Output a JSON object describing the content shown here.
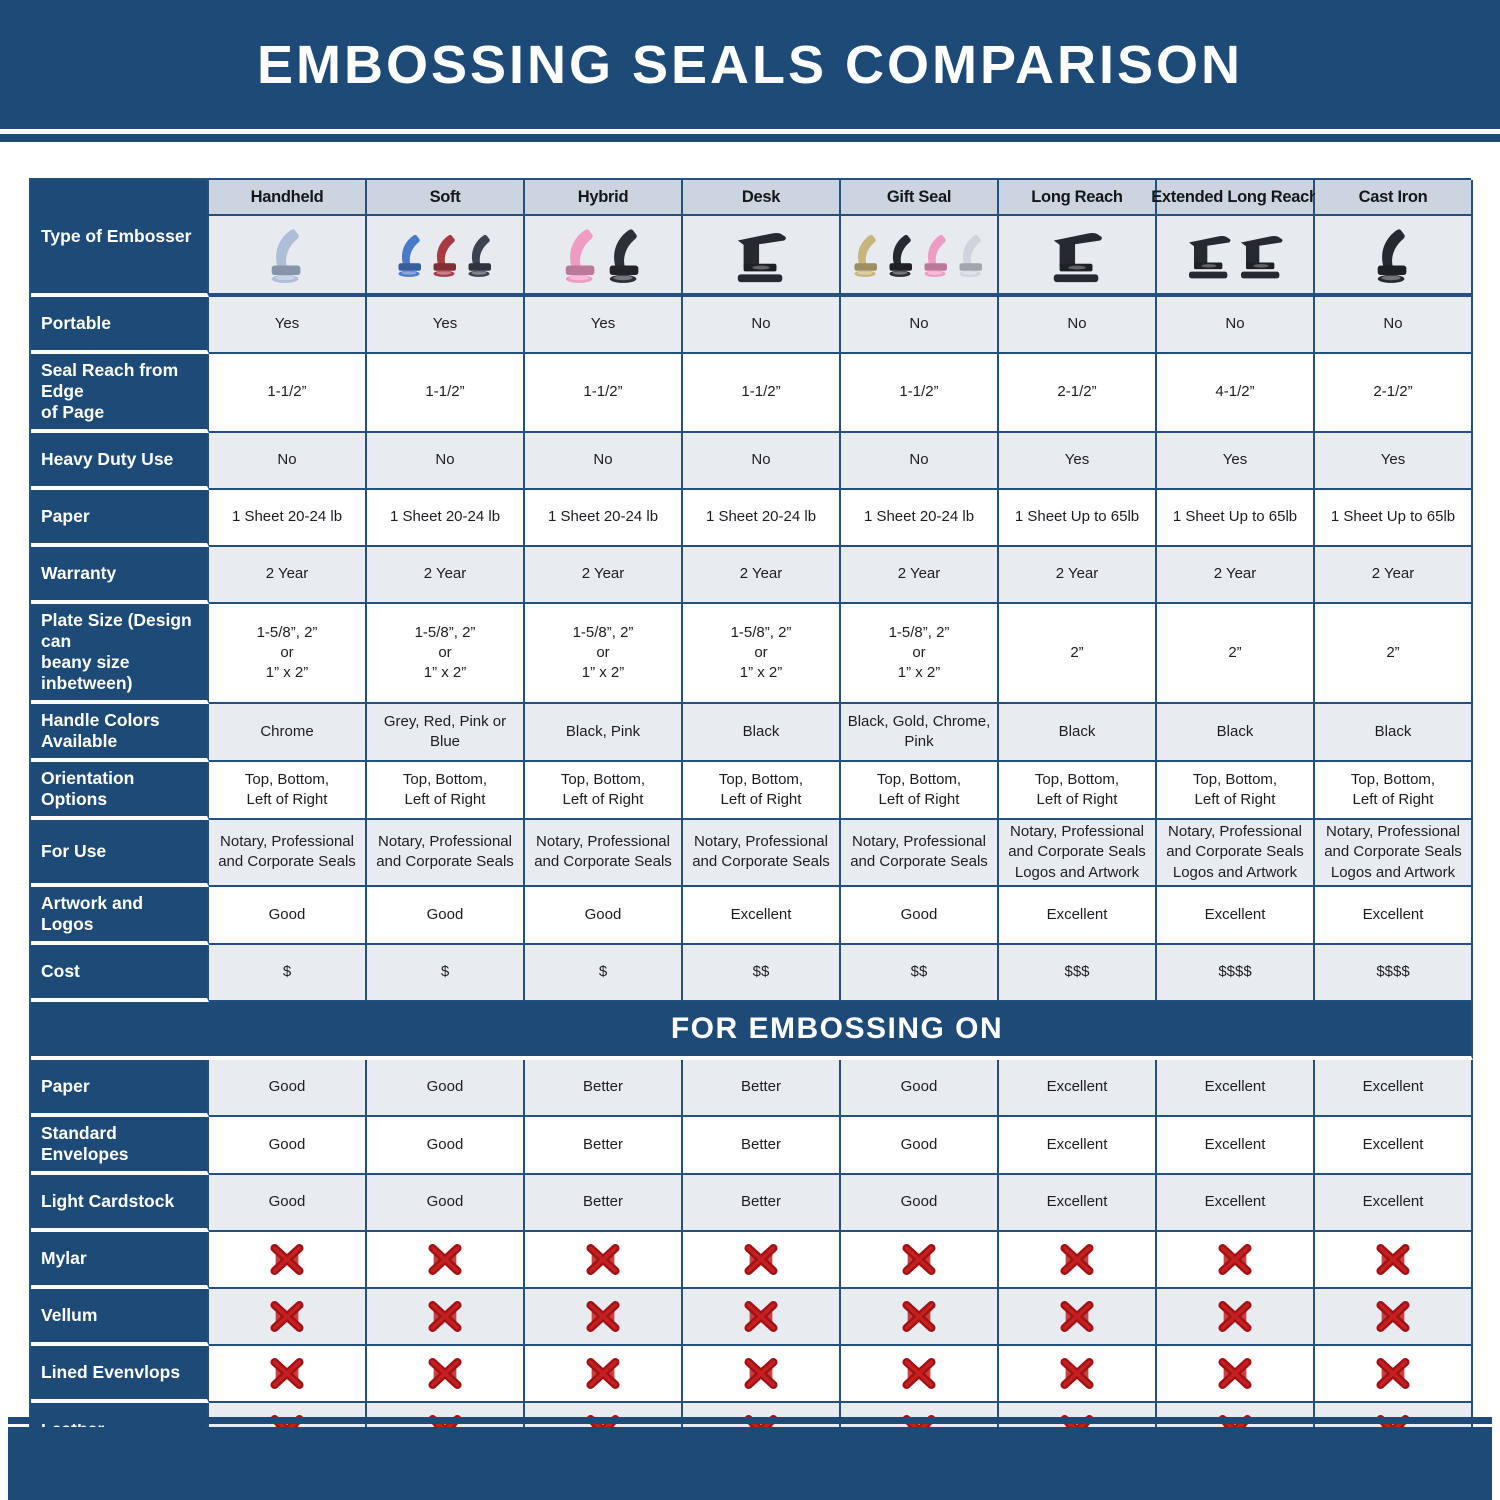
{
  "title": "EMBOSSING SEALS COMPARISON",
  "colors": {
    "navy": "#1d4a77",
    "grid_border": "#24507f",
    "row_alt_bg": "#e8ecf1",
    "column_header_bg": "#ccd4e0",
    "image_row_bg": "#e7eaef",
    "x_red_dark": "#a01015",
    "x_red_light": "#c42020"
  },
  "table": {
    "corner_label": "Type of Embosser",
    "columns": [
      "Handheld",
      "Soft",
      "Hybrid",
      "Desk",
      "Gift Seal",
      "Long Reach",
      "Extended Long Reach",
      "Cast Iron"
    ],
    "embosser_images": [
      {
        "name": "handheld-embosser-image",
        "style": "hand",
        "colors": [
          "#aebdd8"
        ]
      },
      {
        "name": "soft-embosser-image",
        "style": "hand",
        "colors": [
          "#4a79c9",
          "#a83a44",
          "#3c4250"
        ]
      },
      {
        "name": "hybrid-embosser-image",
        "style": "hand",
        "colors": [
          "#ef9cc3",
          "#2c2f36"
        ]
      },
      {
        "name": "desk-embosser-image",
        "style": "desk",
        "colors": [
          "#26292f"
        ]
      },
      {
        "name": "gift-seal-embosser-image",
        "style": "hand",
        "colors": [
          "#c8b57e",
          "#26292f",
          "#ef9cc3",
          "#cfd4dd"
        ]
      },
      {
        "name": "long-reach-embosser-image",
        "style": "desk",
        "colors": [
          "#26292f"
        ]
      },
      {
        "name": "extended-long-reach-embosser-image",
        "style": "desk",
        "colors": [
          "#26292f",
          "#26292f"
        ]
      },
      {
        "name": "cast-iron-embosser-image",
        "style": "hand",
        "colors": [
          "#26292f"
        ]
      }
    ],
    "spec_rows": [
      {
        "label": "Portable",
        "values": [
          "Yes",
          "Yes",
          "Yes",
          "No",
          "No",
          "No",
          "No",
          "No"
        ]
      },
      {
        "label": "Seal Reach from Edge\nof Page",
        "values": [
          "1-1/2”",
          "1-1/2”",
          "1-1/2”",
          "1-1/2”",
          "1-1/2”",
          "2-1/2”",
          "4-1/2”",
          "2-1/2”"
        ]
      },
      {
        "label": "Heavy Duty Use",
        "values": [
          "No",
          "No",
          "No",
          "No",
          "No",
          "Yes",
          "Yes",
          "Yes"
        ]
      },
      {
        "label": "Paper",
        "values": [
          "1 Sheet 20-24 lb",
          "1 Sheet 20-24 lb",
          "1 Sheet 20-24 lb",
          "1 Sheet 20-24 lb",
          "1 Sheet 20-24 lb",
          "1 Sheet Up to 65lb",
          "1 Sheet Up to 65lb",
          "1 Sheet Up to 65lb"
        ]
      },
      {
        "label": "Warranty",
        "values": [
          "2 Year",
          "2 Year",
          "2 Year",
          "2 Year",
          "2 Year",
          "2 Year",
          "2 Year",
          "2 Year"
        ]
      },
      {
        "label": "Plate Size (Design can\nbeany size inbetween)",
        "values": [
          "1-5/8”, 2”\nor\n1” x 2”",
          "1-5/8”, 2”\nor\n1” x 2”",
          "1-5/8”, 2”\nor\n1” x 2”",
          "1-5/8”, 2”\nor\n1” x 2”",
          "1-5/8”, 2”\nor\n1” x 2”",
          "2”",
          "2”",
          "2”"
        ]
      },
      {
        "label": "Handle Colors Available",
        "values": [
          "Chrome",
          "Grey, Red, Pink or Blue",
          "Black, Pink",
          "Black",
          "Black, Gold, Chrome, Pink",
          "Black",
          "Black",
          "Black"
        ]
      },
      {
        "label": "Orientation Options",
        "values": [
          "Top, Bottom,\nLeft of Right",
          "Top, Bottom,\nLeft of Right",
          "Top, Bottom,\nLeft of Right",
          "Top, Bottom,\nLeft of Right",
          "Top, Bottom,\nLeft of Right",
          "Top, Bottom,\nLeft of Right",
          "Top, Bottom,\nLeft of Right",
          "Top, Bottom,\nLeft of Right"
        ]
      },
      {
        "label": "For Use",
        "values": [
          "Notary, Professional\nand Corporate Seals",
          "Notary, Professional\nand Corporate Seals",
          "Notary, Professional\nand Corporate Seals",
          "Notary, Professional\nand Corporate Seals",
          "Notary, Professional\nand Corporate Seals",
          "Notary, Professional\nand Corporate Seals\nLogos and Artwork",
          "Notary, Professional\nand Corporate Seals\nLogos and Artwork",
          "Notary, Professional\nand Corporate Seals\nLogos and Artwork"
        ]
      },
      {
        "label": "Artwork and Logos",
        "values": [
          "Good",
          "Good",
          "Good",
          "Excellent",
          "Good",
          "Excellent",
          "Excellent",
          "Excellent"
        ]
      },
      {
        "label": "Cost",
        "values": [
          "$",
          "$",
          "$",
          "$$",
          "$$",
          "$$$",
          "$$$$",
          "$$$$"
        ]
      }
    ],
    "embossing_section_title": "FOR EMBOSSING ON",
    "embossing_rows": [
      {
        "label": "Paper",
        "values": [
          "Good",
          "Good",
          "Better",
          "Better",
          "Good",
          "Excellent",
          "Excellent",
          "Excellent"
        ]
      },
      {
        "label": "Standard Envelopes",
        "values": [
          "Good",
          "Good",
          "Better",
          "Better",
          "Good",
          "Excellent",
          "Excellent",
          "Excellent"
        ]
      },
      {
        "label": "Light Cardstock",
        "values": [
          "Good",
          "Good",
          "Better",
          "Better",
          "Good",
          "Excellent",
          "Excellent",
          "Excellent"
        ]
      },
      {
        "label": "Mylar",
        "values": [
          "[X]",
          "[X]",
          "[X]",
          "[X]",
          "[X]",
          "[X]",
          "[X]",
          "[X]"
        ]
      },
      {
        "label": "Vellum",
        "values": [
          "[X]",
          "[X]",
          "[X]",
          "[X]",
          "[X]",
          "[X]",
          "[X]",
          "[X]"
        ]
      },
      {
        "label": "Lined Evenvlops",
        "values": [
          "[X]",
          "[X]",
          "[X]",
          "[X]",
          "[X]",
          "[X]",
          "[X]",
          "[X]"
        ]
      },
      {
        "label": "Leather",
        "values": [
          "[X]",
          "[X]",
          "[X]",
          "[X]",
          "[X]",
          "[X]",
          "[X]",
          "[X]"
        ]
      }
    ]
  }
}
